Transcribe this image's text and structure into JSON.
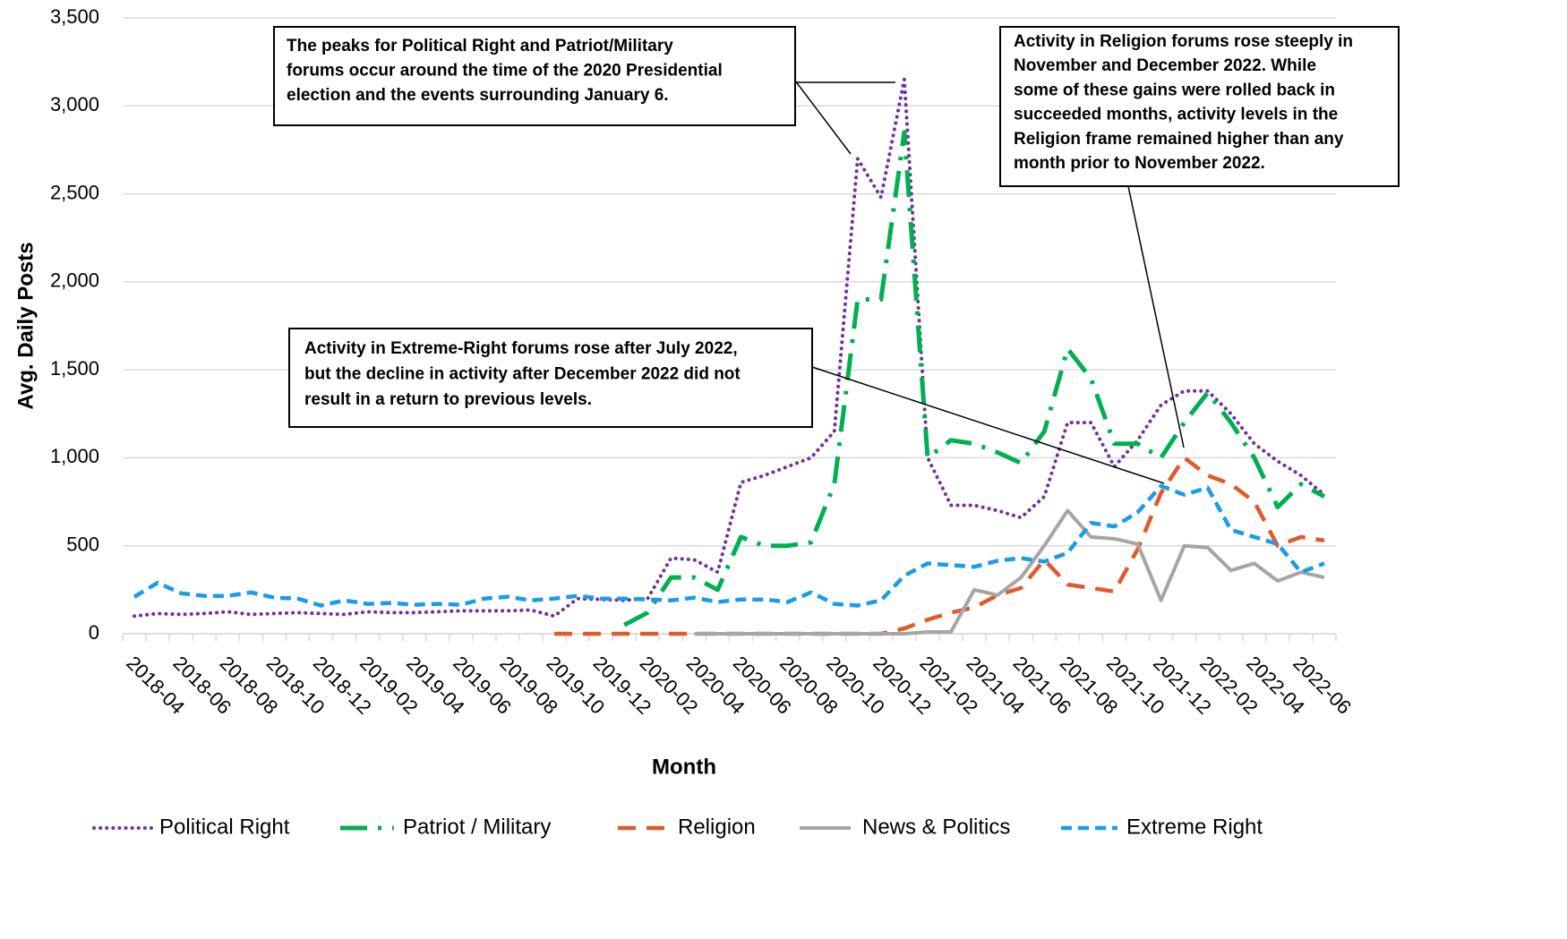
{
  "chart_data": {
    "type": "line",
    "x_label": "Month",
    "y_label": "Avg. Daily Posts",
    "categories": [
      "2018-04",
      null,
      "2018-06",
      null,
      "2018-08",
      null,
      "2018-10",
      null,
      "2018-12",
      null,
      "2019-02",
      null,
      "2019-04",
      null,
      "2019-06",
      null,
      "2019-08",
      null,
      "2019-10",
      null,
      "2019-12",
      null,
      "2020-02",
      null,
      "2020-04",
      null,
      "2020-06",
      null,
      "2020-08",
      null,
      "2020-10",
      null,
      "2020-12",
      null,
      "2021-02",
      null,
      "2021-04",
      null,
      "2021-06",
      null,
      "2021-08",
      null,
      "2021-10",
      null,
      "2021-12",
      null,
      "2022-02",
      null,
      "2022-04",
      null,
      "2022-06",
      null
    ],
    "ylim": [
      0,
      3500
    ],
    "yticks": [
      0,
      500,
      {
        "value": 1000,
        "label": "1,000"
      },
      {
        "value": 1500,
        "label": "1,500"
      },
      {
        "value": 2000,
        "label": "2,000"
      },
      {
        "value": 2500,
        "label": "2,500"
      },
      {
        "value": 3000,
        "label": "3,000"
      },
      {
        "value": 3500,
        "label": "3,500"
      }
    ],
    "grid": true,
    "legend": "bottom",
    "series": [
      {
        "name": "Political Right",
        "color": "#7030a0",
        "dash": "dot",
        "values": [
          100,
          115,
          110,
          115,
          125,
          110,
          115,
          120,
          115,
          110,
          125,
          120,
          120,
          125,
          130,
          130,
          130,
          135,
          100,
          200,
          195,
          190,
          200,
          430,
          420,
          350,
          860,
          900,
          950,
          1000,
          1150,
          2700,
          2480,
          3150,
          1000,
          730,
          730,
          700,
          660,
          780,
          1200,
          1200,
          950,
          1100,
          1300,
          1380,
          1380,
          1250,
          1080,
          980,
          900,
          790
        ]
      },
      {
        "name": "Patriot / Military",
        "color": "#00b050",
        "dash": "longdashdot",
        "values": [
          null,
          null,
          null,
          null,
          null,
          null,
          null,
          null,
          null,
          null,
          null,
          null,
          null,
          null,
          null,
          null,
          null,
          null,
          null,
          null,
          null,
          50,
          120,
          320,
          320,
          250,
          550,
          500,
          500,
          520,
          850,
          1900,
          1900,
          2850,
          1000,
          1100,
          1080,
          1030,
          970,
          1150,
          1620,
          1450,
          1080,
          1080,
          1000,
          1200,
          1370,
          1200,
          1000,
          720,
          850,
          780
        ]
      },
      {
        "name": "Religion",
        "color": "#e05a2b",
        "dash": "dash",
        "values": [
          null,
          null,
          null,
          null,
          null,
          null,
          null,
          null,
          null,
          null,
          null,
          null,
          null,
          null,
          null,
          null,
          null,
          null,
          0,
          0,
          0,
          0,
          0,
          0,
          0,
          0,
          0,
          0,
          0,
          0,
          0,
          0,
          0,
          30,
          80,
          120,
          150,
          220,
          260,
          420,
          280,
          260,
          240,
          480,
          800,
          1000,
          900,
          850,
          750,
          500,
          550,
          530
        ]
      },
      {
        "name": "News & Politics",
        "color": "#a5a5a5",
        "dash": "solid",
        "values": [
          null,
          null,
          null,
          null,
          null,
          null,
          null,
          null,
          null,
          null,
          null,
          null,
          null,
          null,
          null,
          null,
          null,
          null,
          null,
          null,
          null,
          null,
          null,
          null,
          0,
          0,
          0,
          0,
          0,
          0,
          0,
          0,
          0,
          0,
          10,
          10,
          250,
          220,
          320,
          500,
          700,
          550,
          540,
          510,
          190,
          500,
          490,
          360,
          400,
          300,
          350,
          320
        ]
      },
      {
        "name": "Extreme Right",
        "color": "#1c9ce8",
        "dash": "shortdash",
        "values": [
          210,
          290,
          230,
          215,
          215,
          235,
          205,
          200,
          160,
          190,
          170,
          175,
          165,
          170,
          165,
          200,
          210,
          190,
          200,
          215,
          200,
          200,
          195,
          190,
          205,
          180,
          195,
          195,
          180,
          235,
          170,
          160,
          190,
          330,
          400,
          390,
          380,
          415,
          430,
          410,
          460,
          630,
          610,
          690,
          840,
          790,
          830,
          590,
          550,
          510,
          350,
          400
        ]
      }
    ],
    "annotations": [
      {
        "lines": [
          "The peaks for Political Right and Patriot/Military",
          "forums occur around the time of the 2020 Presidential",
          "election and the events surrounding January 6."
        ]
      },
      {
        "lines": [
          "Activity in Religion forums rose steeply in",
          "November and December 2022. While",
          "some of these gains were rolled back in",
          "succeeded months, activity levels in the",
          "Religion frame remained higher than any",
          "month prior to November 2022."
        ]
      },
      {
        "lines": [
          "Activity in Extreme-Right forums rose after July 2022,",
          "but the decline in activity after December 2022 did not",
          "result in a return to previous levels."
        ]
      }
    ]
  }
}
